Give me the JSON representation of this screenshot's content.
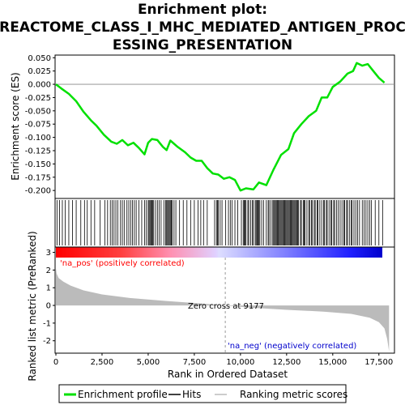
{
  "title_lines": [
    "Enrichment plot:",
    "REACTOME_CLASS_I_MHC_MEDIATED_ANTIGEN_PROC",
    "ESSING_PRESENTATION"
  ],
  "labels": {
    "ylabel_top": "Enrichment score (ES)",
    "ylabel_bottom": "Ranked list metric (PreRanked)",
    "xlabel": "Rank in Ordered Dataset",
    "pos_label": "'na_pos' (positively correlated)",
    "neg_label": "'na_neg' (negatively correlated)",
    "zero_cross": "Zero cross at 9177"
  },
  "legend": {
    "items": [
      {
        "label": "Enrichment profile",
        "color": "#00e000"
      },
      {
        "label": "Hits",
        "color": "#000000"
      },
      {
        "label": "Ranking metric scores",
        "color": "#bbbbbb"
      }
    ]
  },
  "colors": {
    "es_line": "#00e000",
    "metric_fill": "#bbbbbb",
    "pos_color": "#ff0000",
    "neg_color": "#0000ff",
    "pos_text": "#ff0000",
    "neg_text": "#0000cc"
  },
  "chart_data": {
    "type": "line",
    "x_ticks": [
      0,
      2500,
      5000,
      7500,
      10000,
      12500,
      15000,
      17500
    ],
    "x_tick_labels": [
      "0",
      "2,500",
      "5,000",
      "7,500",
      "10,000",
      "12,500",
      "15,000",
      "17,500"
    ],
    "xlim": [
      0,
      18300
    ],
    "es_ylim": [
      -0.215,
      0.055
    ],
    "es_yticks": [
      0.05,
      0.025,
      0.0,
      -0.025,
      -0.05,
      -0.075,
      -0.1,
      -0.125,
      -0.15,
      -0.175,
      -0.2
    ],
    "es_ytick_labels": [
      "0.050",
      "0.025",
      "0.000",
      "-0.025",
      "-0.050",
      "-0.075",
      "-0.100",
      "-0.125",
      "-0.150",
      "-0.175",
      "-0.200"
    ],
    "metric_ylim": [
      -2.7,
      3.3
    ],
    "metric_yticks": [
      3,
      2,
      1,
      0,
      -1,
      -2
    ],
    "metric_ytick_labels": [
      "3",
      "2",
      "1",
      "0",
      "-1",
      "-2"
    ],
    "zero_cross": 9177,
    "es_profile": [
      [
        0,
        0.0
      ],
      [
        300,
        -0.008
      ],
      [
        700,
        -0.018
      ],
      [
        1100,
        -0.032
      ],
      [
        1500,
        -0.052
      ],
      [
        1900,
        -0.068
      ],
      [
        2200,
        -0.078
      ],
      [
        2600,
        -0.095
      ],
      [
        3000,
        -0.108
      ],
      [
        3300,
        -0.112
      ],
      [
        3600,
        -0.105
      ],
      [
        3900,
        -0.115
      ],
      [
        4200,
        -0.11
      ],
      [
        4500,
        -0.12
      ],
      [
        4800,
        -0.132
      ],
      [
        5000,
        -0.11
      ],
      [
        5200,
        -0.103
      ],
      [
        5500,
        -0.105
      ],
      [
        5800,
        -0.118
      ],
      [
        6000,
        -0.124
      ],
      [
        6200,
        -0.106
      ],
      [
        6600,
        -0.118
      ],
      [
        7000,
        -0.128
      ],
      [
        7300,
        -0.138
      ],
      [
        7600,
        -0.144
      ],
      [
        7900,
        -0.144
      ],
      [
        8200,
        -0.158
      ],
      [
        8500,
        -0.168
      ],
      [
        8800,
        -0.17
      ],
      [
        9100,
        -0.178
      ],
      [
        9400,
        -0.175
      ],
      [
        9700,
        -0.18
      ],
      [
        10000,
        -0.2
      ],
      [
        10300,
        -0.196
      ],
      [
        10700,
        -0.198
      ],
      [
        11000,
        -0.185
      ],
      [
        11400,
        -0.19
      ],
      [
        11800,
        -0.16
      ],
      [
        12200,
        -0.133
      ],
      [
        12600,
        -0.122
      ],
      [
        12900,
        -0.092
      ],
      [
        13300,
        -0.075
      ],
      [
        13700,
        -0.06
      ],
      [
        14100,
        -0.05
      ],
      [
        14400,
        -0.025
      ],
      [
        14700,
        -0.025
      ],
      [
        15000,
        -0.005
      ],
      [
        15400,
        0.005
      ],
      [
        15800,
        0.02
      ],
      [
        16100,
        0.025
      ],
      [
        16300,
        0.04
      ],
      [
        16600,
        0.035
      ],
      [
        16900,
        0.038
      ],
      [
        17200,
        0.025
      ],
      [
        17500,
        0.012
      ],
      [
        17800,
        0.003
      ]
    ],
    "hits": [
      60,
      200,
      350,
      500,
      700,
      900,
      1100,
      1350,
      1550,
      1700,
      1900,
      2100,
      2400,
      2650,
      2800,
      2950,
      3050,
      3150,
      3250,
      3350,
      3500,
      3600,
      3700,
      3850,
      3950,
      4050,
      4150,
      4250,
      4350,
      4500,
      4650,
      4800,
      4900,
      5000,
      5050,
      5100,
      5150,
      5200,
      5250,
      5300,
      5400,
      5500,
      5600,
      5700,
      5850,
      5950,
      6000,
      6050,
      6100,
      6150,
      6200,
      6250,
      6300,
      6400,
      6500,
      6700,
      6900,
      7100,
      7300,
      7500,
      7700,
      7850,
      8000,
      8200,
      8600,
      8700,
      8750,
      8800,
      8900,
      9000,
      9200,
      9350,
      9450,
      9550,
      9700,
      9850,
      10050,
      10150,
      10200,
      10250,
      10300,
      10400,
      10450,
      10550,
      10650,
      10700,
      10800,
      10850,
      10900,
      10950,
      11000,
      11050,
      11150,
      11250,
      11400,
      11500,
      11550,
      11650,
      11750,
      11800,
      11850,
      11900,
      11950,
      12000,
      12050,
      12100,
      12150,
      12200,
      12250,
      12300,
      12350,
      12400,
      12450,
      12500,
      12550,
      12600,
      12650,
      12700,
      12750,
      12800,
      12850,
      12900,
      12950,
      13000,
      13050,
      13100,
      13150,
      13250,
      13300,
      13400,
      13450,
      13500,
      13600,
      13700,
      13750,
      13850,
      13900,
      14000,
      14050,
      14150,
      14200,
      14300,
      14400,
      14500,
      14550,
      14650,
      14700,
      14800,
      14900,
      14950,
      15050,
      15100,
      15200,
      15300,
      15400,
      15500,
      15600,
      15650,
      15750,
      15800,
      15900,
      16000,
      16050,
      16150,
      16250,
      16350,
      16450,
      16600,
      16700,
      16800,
      16900,
      17000,
      17100,
      17300,
      17500,
      17700
    ],
    "metric_curve": [
      [
        0,
        2.1
      ],
      [
        40,
        1.8
      ],
      [
        150,
        1.55
      ],
      [
        400,
        1.35
      ],
      [
        800,
        1.12
      ],
      [
        1500,
        0.85
      ],
      [
        2500,
        0.62
      ],
      [
        4000,
        0.42
      ],
      [
        6000,
        0.25
      ],
      [
        8000,
        0.1
      ],
      [
        9177,
        0.0
      ],
      [
        10500,
        -0.12
      ],
      [
        12500,
        -0.25
      ],
      [
        14500,
        -0.35
      ],
      [
        16000,
        -0.48
      ],
      [
        17000,
        -0.7
      ],
      [
        17500,
        -0.95
      ],
      [
        17800,
        -1.3
      ],
      [
        17950,
        -1.9
      ],
      [
        18050,
        -2.6
      ]
    ]
  }
}
